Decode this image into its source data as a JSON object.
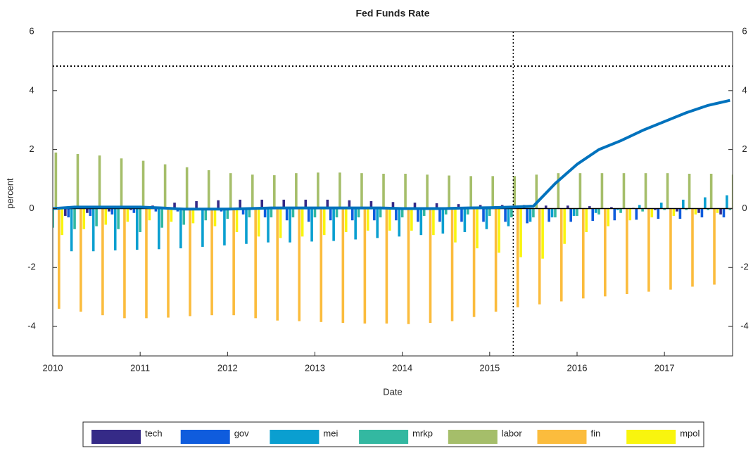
{
  "chart_data": {
    "type": "bar",
    "title": "Fed Funds Rate",
    "x_label": "Date",
    "y_label": "percent",
    "xlim": [
      2010,
      2017.78
    ],
    "xticks": [
      2010,
      2011,
      2012,
      2013,
      2014,
      2015,
      2016,
      2017
    ],
    "ylim": [
      -5,
      6
    ],
    "yticks": [
      -4,
      -2,
      0,
      2,
      4,
      6
    ],
    "x": [
      2010,
      2010.25,
      2010.5,
      2010.75,
      2011,
      2011.25,
      2011.5,
      2011.75,
      2012,
      2012.25,
      2012.5,
      2012.75,
      2013,
      2013.25,
      2013.5,
      2013.75,
      2014,
      2014.25,
      2014.5,
      2014.75,
      2015,
      2015.25,
      2015.5,
      2015.75,
      2016,
      2016.25,
      2016.5,
      2016.75,
      2017,
      2017.25,
      2017.5,
      2017.75
    ],
    "series": [
      {
        "name": "tech",
        "color": "#352a87",
        "values": [
          -0.2,
          -0.25,
          -0.15,
          -0.1,
          -0.05,
          0.1,
          0.2,
          0.25,
          0.28,
          0.3,
          0.3,
          0.3,
          0.3,
          0.3,
          0.28,
          0.25,
          0.22,
          0.2,
          0.18,
          0.15,
          0.12,
          0.12,
          0.12,
          0.1,
          0.1,
          0.08,
          0.05,
          0.02,
          -0.05,
          -0.1,
          -0.15,
          -0.2
        ]
      },
      {
        "name": "gov",
        "color": "#0f5cdd",
        "values": [
          -0.3,
          -0.3,
          -0.25,
          -0.2,
          -0.15,
          -0.1,
          -0.1,
          -0.05,
          -0.1,
          -0.2,
          -0.3,
          -0.4,
          -0.45,
          -0.4,
          -0.4,
          -0.4,
          -0.4,
          -0.45,
          -0.45,
          -0.45,
          -0.45,
          -0.45,
          -0.5,
          -0.45,
          -0.45,
          -0.42,
          -0.4,
          -0.38,
          -0.35,
          -0.35,
          -0.3,
          -0.3
        ]
      },
      {
        "name": "mei",
        "color": "#0a9fd0",
        "values": [
          -1.5,
          -1.45,
          -1.45,
          -1.42,
          -1.4,
          -1.38,
          -1.35,
          -1.3,
          -1.25,
          -1.2,
          -1.15,
          -1.15,
          -1.12,
          -1.1,
          -1.05,
          -1.0,
          -0.95,
          -0.9,
          -0.85,
          -0.8,
          -0.7,
          -0.6,
          -0.45,
          -0.3,
          -0.25,
          -0.15,
          -0.05,
          0.12,
          0.2,
          0.3,
          0.38,
          0.45
        ]
      },
      {
        "name": "mrkp",
        "color": "#33b8a1",
        "values": [
          -0.65,
          -0.7,
          -0.6,
          -0.7,
          -0.8,
          -0.65,
          -0.55,
          -0.4,
          -0.35,
          -0.3,
          -0.3,
          -0.3,
          -0.3,
          -0.3,
          -0.3,
          -0.3,
          -0.3,
          -0.25,
          -0.2,
          -0.2,
          -0.25,
          -0.3,
          -0.3,
          -0.3,
          -0.25,
          -0.2,
          -0.15,
          -0.1,
          -0.05,
          -0.05,
          -0.05,
          -0.05
        ]
      },
      {
        "name": "labor",
        "color": "#a5be6a",
        "values": [
          1.9,
          1.85,
          1.8,
          1.7,
          1.62,
          1.5,
          1.4,
          1.3,
          1.2,
          1.15,
          1.13,
          1.2,
          1.22,
          1.22,
          1.2,
          1.18,
          1.18,
          1.15,
          1.12,
          1.1,
          1.1,
          1.1,
          1.15,
          1.2,
          1.2,
          1.2,
          1.2,
          1.2,
          1.2,
          1.18,
          1.18,
          1.15
        ]
      },
      {
        "name": "fin",
        "color": "#fbbc3d",
        "values": [
          -3.4,
          -3.5,
          -3.62,
          -3.72,
          -3.72,
          -3.7,
          -3.65,
          -3.62,
          -3.62,
          -3.72,
          -3.8,
          -3.82,
          -3.85,
          -3.88,
          -3.9,
          -3.9,
          -3.92,
          -3.88,
          -3.82,
          -3.68,
          -3.5,
          -3.35,
          -3.25,
          -3.15,
          -3.05,
          -2.98,
          -2.9,
          -2.82,
          -2.75,
          -2.65,
          -2.58,
          -2.5
        ]
      },
      {
        "name": "mpol",
        "color": "#f9f50e",
        "values": [
          -0.9,
          -0.7,
          -0.55,
          -0.45,
          -0.4,
          -0.45,
          -0.5,
          -0.6,
          -0.8,
          -0.95,
          -1.0,
          -0.95,
          -0.9,
          -0.8,
          -0.75,
          -0.75,
          -0.75,
          -0.9,
          -1.15,
          -1.35,
          -1.5,
          -1.65,
          -1.7,
          -1.2,
          -0.8,
          -0.6,
          -0.4,
          -0.3,
          -0.25,
          -0.2,
          -0.15,
          0.15
        ]
      }
    ],
    "line": {
      "color": "#0072bd",
      "values": [
        0,
        0.05,
        0.05,
        0.05,
        0.05,
        0.02,
        -0.02,
        -0.02,
        -0.02,
        0,
        0.02,
        0.02,
        0.02,
        0.02,
        0.02,
        0.02,
        0,
        0,
        0,
        0.02,
        0.03,
        0.05,
        0.08,
        0.85,
        1.5,
        2.0,
        2.3,
        2.65,
        2.95,
        3.25,
        3.5,
        3.67
      ]
    },
    "hline": 4.83,
    "vline": 2015.27
  }
}
